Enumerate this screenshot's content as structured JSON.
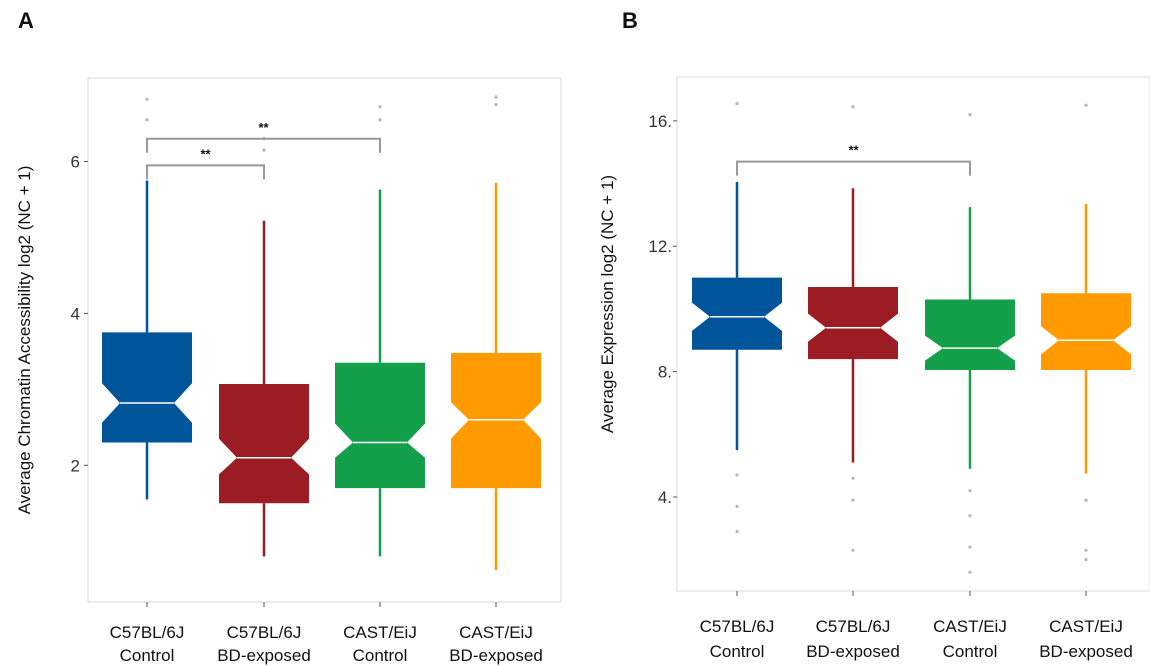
{
  "chart_data": [
    {
      "panel": "A",
      "type": "boxplot",
      "ylabel": "Average Chromatin Accessibility log2 (NC + 1)",
      "ylim": [
        0.2,
        7.1
      ],
      "yticks": [
        2,
        4,
        6
      ],
      "tick_labels": [
        "2",
        "4",
        "6"
      ],
      "grid": false,
      "notched": true,
      "categories": [
        {
          "line1": "C57BL/6J",
          "line2": "Control"
        },
        {
          "line1": "C57BL/6J",
          "line2": "BD-exposed"
        },
        {
          "line1": "CAST/EiJ",
          "line2": "Control"
        },
        {
          "line1": "CAST/EiJ",
          "line2": "BD-exposed"
        }
      ],
      "boxes": [
        {
          "color": "#00559a",
          "whisker_low": 1.55,
          "q1": 2.3,
          "median": 2.82,
          "q3": 3.75,
          "whisker_high": 5.75,
          "notch_low": 2.56,
          "notch_high": 3.08,
          "outliers": [
            6.55,
            6.82
          ]
        },
        {
          "color": "#9b1c22",
          "whisker_low": 0.8,
          "q1": 1.5,
          "median": 2.1,
          "q3": 3.07,
          "whisker_high": 5.22,
          "notch_low": 1.88,
          "notch_high": 2.35,
          "outliers": [
            6.15,
            6.3
          ]
        },
        {
          "color": "#14a04a",
          "whisker_low": 0.8,
          "q1": 1.7,
          "median": 2.3,
          "q3": 3.35,
          "whisker_high": 5.63,
          "notch_low": 2.1,
          "notch_high": 2.55,
          "outliers": [
            6.55,
            6.72
          ]
        },
        {
          "color": "#ff9a00",
          "whisker_low": 0.62,
          "q1": 1.7,
          "median": 2.6,
          "q3": 3.48,
          "whisker_high": 5.72,
          "notch_low": 2.35,
          "notch_high": 2.83,
          "outliers": [
            6.75,
            6.85
          ]
        }
      ],
      "significance": [
        {
          "from": 0,
          "to": 1,
          "label": "**",
          "y": 5.95
        },
        {
          "from": 0,
          "to": 2,
          "label": "**",
          "y": 6.3
        }
      ]
    },
    {
      "panel": "B",
      "type": "boxplot",
      "ylabel": "Average Expression log2 (NC + 1)",
      "ylim": [
        1.0,
        17.4
      ],
      "yticks": [
        4,
        8,
        12,
        16
      ],
      "tick_labels": [
        "4.",
        "8.",
        "12.",
        "16."
      ],
      "grid": false,
      "notched": true,
      "categories": [
        {
          "line1": "C57BL/6J",
          "line2": "Control"
        },
        {
          "line1": "C57BL/6J",
          "line2": "BD-exposed"
        },
        {
          "line1": "CAST/EiJ",
          "line2": "Control"
        },
        {
          "line1": "CAST/EiJ",
          "line2": "BD-exposed"
        }
      ],
      "boxes": [
        {
          "color": "#00559a",
          "whisker_low": 5.5,
          "q1": 8.7,
          "median": 9.75,
          "q3": 11.0,
          "whisker_high": 14.05,
          "notch_low": 9.3,
          "notch_high": 10.2,
          "outliers": [
            2.9,
            3.7,
            4.7,
            16.55
          ]
        },
        {
          "color": "#9b1c22",
          "whisker_low": 5.1,
          "q1": 8.4,
          "median": 9.4,
          "q3": 10.7,
          "whisker_high": 13.85,
          "notch_low": 8.95,
          "notch_high": 9.85,
          "outliers": [
            2.3,
            3.9,
            4.6,
            16.45
          ]
        },
        {
          "color": "#14a04a",
          "whisker_low": 4.9,
          "q1": 8.05,
          "median": 8.75,
          "q3": 10.3,
          "whisker_high": 13.25,
          "notch_low": 8.35,
          "notch_high": 9.15,
          "outliers": [
            1.6,
            2.4,
            3.4,
            4.2,
            16.2
          ]
        },
        {
          "color": "#ff9a00",
          "whisker_low": 4.75,
          "q1": 8.05,
          "median": 9.0,
          "q3": 10.5,
          "whisker_high": 13.35,
          "notch_low": 8.55,
          "notch_high": 9.45,
          "outliers": [
            2.0,
            2.3,
            3.9,
            16.5
          ]
        }
      ],
      "significance": [
        {
          "from": 0,
          "to": 2,
          "label": "**",
          "y": 14.7
        }
      ]
    }
  ]
}
